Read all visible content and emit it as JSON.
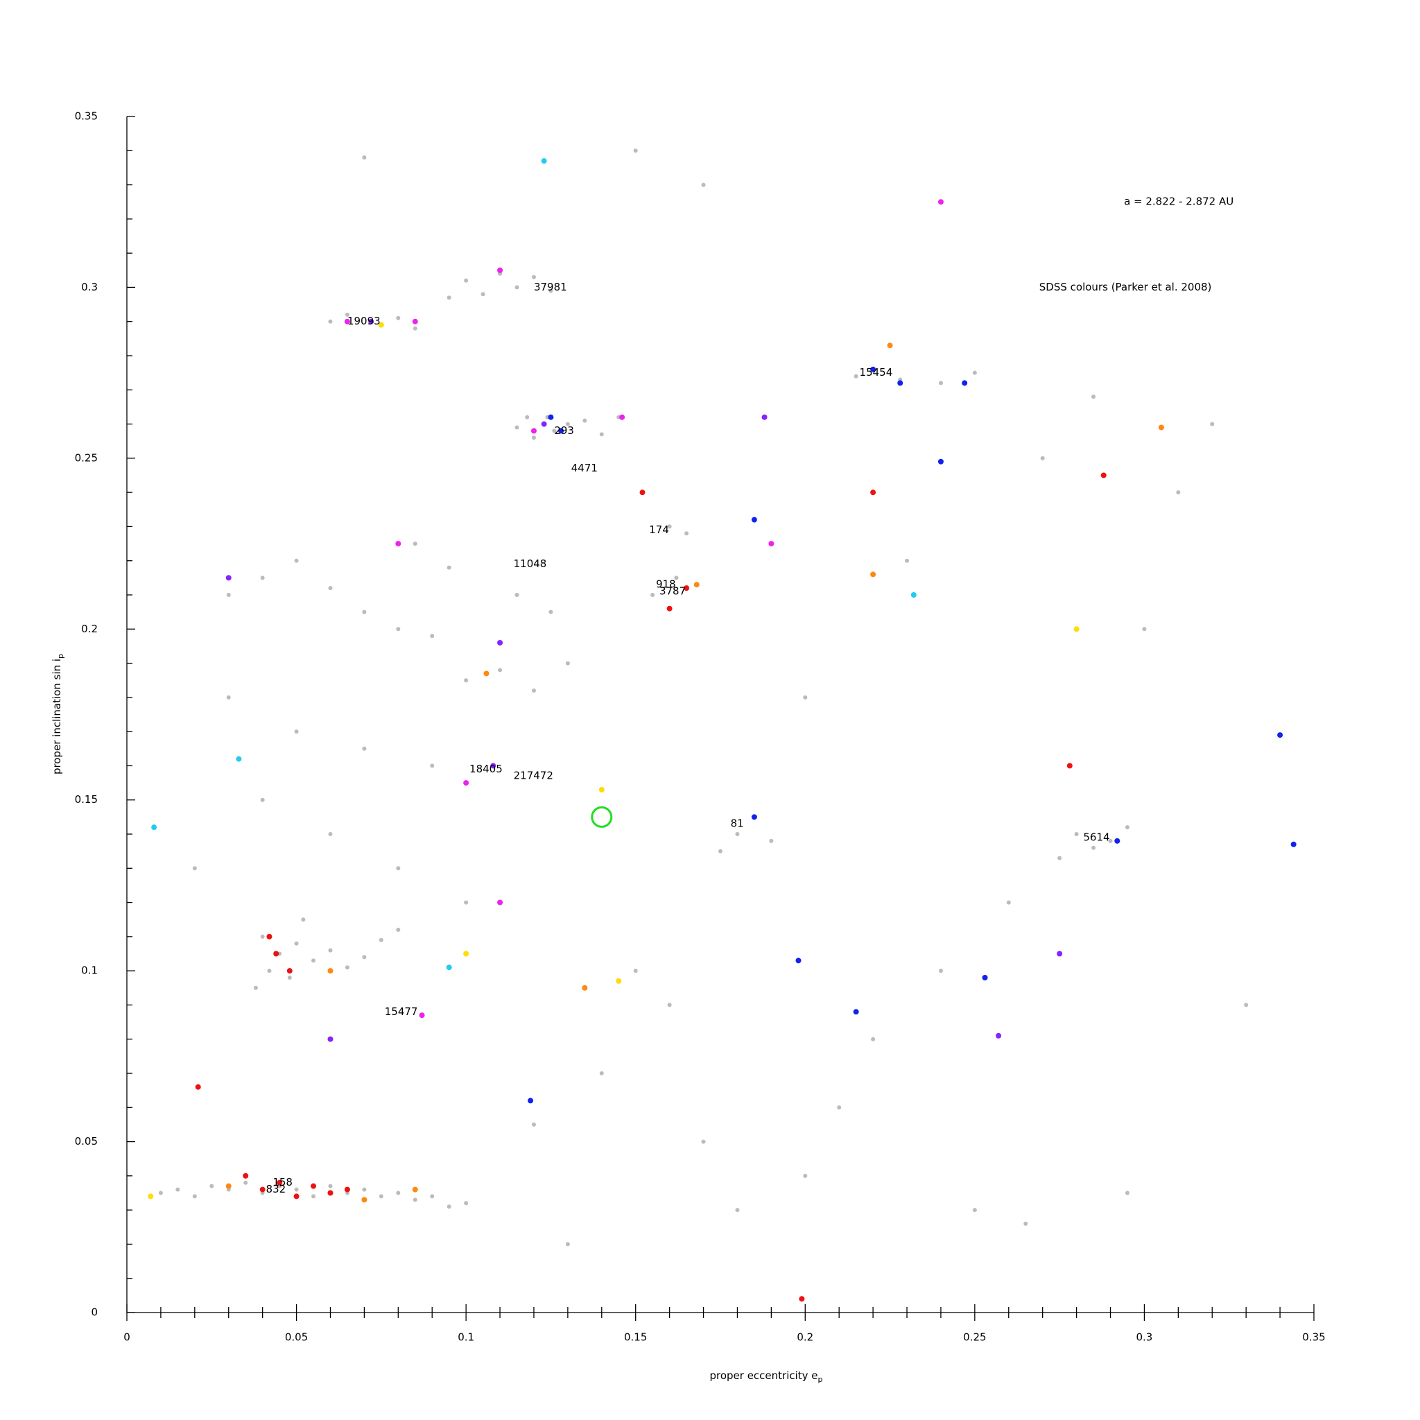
{
  "chart_data": {
    "type": "scatter",
    "xlabel": "proper eccentricity e",
    "xlabel_sub": "p",
    "ylabel": "proper inclination sin i",
    "ylabel_sub": "p",
    "xlim": [
      0,
      0.35
    ],
    "ylim": [
      0,
      0.35
    ],
    "xticks": [
      0,
      0.05,
      0.1,
      0.15,
      0.2,
      0.25,
      0.3,
      0.35
    ],
    "yticks": [
      0,
      0.05,
      0.1,
      0.15,
      0.2,
      0.25,
      0.3,
      0.35
    ],
    "minor_xticks": [
      0.01,
      0.02,
      0.03,
      0.04,
      0.06,
      0.07,
      0.08,
      0.09,
      0.11,
      0.12,
      0.13,
      0.14,
      0.16,
      0.17,
      0.18,
      0.19,
      0.21,
      0.22,
      0.23,
      0.24,
      0.26,
      0.27,
      0.28,
      0.29,
      0.31,
      0.32,
      0.33,
      0.34
    ],
    "minor_yticks": [
      0.01,
      0.02,
      0.03,
      0.04,
      0.06,
      0.07,
      0.08,
      0.09,
      0.11,
      0.12,
      0.13,
      0.14,
      0.16,
      0.17,
      0.18,
      0.19,
      0.21,
      0.22,
      0.23,
      0.24,
      0.26,
      0.27,
      0.28,
      0.29,
      0.31,
      0.32,
      0.33,
      0.34
    ],
    "annotations": [
      {
        "text": "a = 2.822 - 2.872 AU",
        "x": 0.294,
        "y": 0.325
      },
      {
        "text": "SDSS colours (Parker et al. 2008)",
        "x": 0.269,
        "y": 0.3
      }
    ],
    "family_labels": [
      {
        "text": "37981",
        "x": 0.12,
        "y": 0.3
      },
      {
        "text": "19093",
        "x": 0.065,
        "y": 0.29
      },
      {
        "text": "15454",
        "x": 0.216,
        "y": 0.275
      },
      {
        "text": "293",
        "x": 0.126,
        "y": 0.258
      },
      {
        "text": "4471",
        "x": 0.131,
        "y": 0.247
      },
      {
        "text": "174",
        "x": 0.154,
        "y": 0.229
      },
      {
        "text": "11048",
        "x": 0.114,
        "y": 0.219
      },
      {
        "text": "918",
        "x": 0.156,
        "y": 0.213
      },
      {
        "text": "3787",
        "x": 0.157,
        "y": 0.211
      },
      {
        "text": "18405",
        "x": 0.101,
        "y": 0.159
      },
      {
        "text": "217472",
        "x": 0.114,
        "y": 0.157
      },
      {
        "text": "81",
        "x": 0.178,
        "y": 0.143
      },
      {
        "text": "5614",
        "x": 0.282,
        "y": 0.139
      },
      {
        "text": "15477",
        "x": 0.076,
        "y": 0.088
      },
      {
        "text": "158",
        "x": 0.043,
        "y": 0.038
      },
      {
        "text": "832",
        "x": 0.041,
        "y": 0.036
      }
    ],
    "highlight": {
      "x": 0.14,
      "y": 0.145,
      "color": "#22dd22"
    },
    "series": [
      {
        "color": "#bbbbbb",
        "x": [
          0.01,
          0.015,
          0.02,
          0.025,
          0.03,
          0.035,
          0.04,
          0.045,
          0.05,
          0.055,
          0.06,
          0.065,
          0.07,
          0.075,
          0.08,
          0.085,
          0.09,
          0.095,
          0.1,
          0.04,
          0.042,
          0.045,
          0.048,
          0.05,
          0.055,
          0.06,
          0.065,
          0.07,
          0.075,
          0.08,
          0.038,
          0.052,
          0.118,
          0.12,
          0.124,
          0.126,
          0.13,
          0.115,
          0.135,
          0.14,
          0.145,
          0.1,
          0.105,
          0.11,
          0.115,
          0.12,
          0.125,
          0.095,
          0.06,
          0.065,
          0.075,
          0.08,
          0.085,
          0.215,
          0.22,
          0.228,
          0.25,
          0.24,
          0.03,
          0.04,
          0.05,
          0.06,
          0.07,
          0.08,
          0.09,
          0.1,
          0.11,
          0.12,
          0.13,
          0.085,
          0.095,
          0.115,
          0.125,
          0.03,
          0.05,
          0.07,
          0.09,
          0.04,
          0.06,
          0.08,
          0.1,
          0.02,
          0.16,
          0.165,
          0.155,
          0.162,
          0.18,
          0.185,
          0.175,
          0.19,
          0.28,
          0.285,
          0.29,
          0.295,
          0.275,
          0.15,
          0.16,
          0.14,
          0.17,
          0.2,
          0.18,
          0.13,
          0.12,
          0.22,
          0.24,
          0.26,
          0.3,
          0.32,
          0.2,
          0.23,
          0.17,
          0.15,
          0.07,
          0.21,
          0.25,
          0.33,
          0.295,
          0.265,
          0.27,
          0.285,
          0.31
        ],
        "values": [
          0.035,
          0.036,
          0.034,
          0.037,
          0.036,
          0.038,
          0.035,
          0.037,
          0.036,
          0.034,
          0.037,
          0.035,
          0.036,
          0.034,
          0.035,
          0.033,
          0.034,
          0.031,
          0.032,
          0.11,
          0.1,
          0.105,
          0.098,
          0.108,
          0.103,
          0.106,
          0.101,
          0.104,
          0.109,
          0.112,
          0.095,
          0.115,
          0.262,
          0.256,
          0.262,
          0.258,
          0.26,
          0.259,
          0.261,
          0.257,
          0.262,
          0.302,
          0.298,
          0.304,
          0.3,
          0.303,
          0.299,
          0.297,
          0.29,
          0.292,
          0.289,
          0.291,
          0.288,
          0.274,
          0.276,
          0.273,
          0.275,
          0.272,
          0.21,
          0.215,
          0.22,
          0.212,
          0.205,
          0.2,
          0.198,
          0.185,
          0.188,
          0.182,
          0.19,
          0.225,
          0.218,
          0.21,
          0.205,
          0.18,
          0.17,
          0.165,
          0.16,
          0.15,
          0.14,
          0.13,
          0.12,
          0.13,
          0.23,
          0.228,
          0.21,
          0.215,
          0.14,
          0.145,
          0.135,
          0.138,
          0.14,
          0.136,
          0.138,
          0.142,
          0.133,
          0.1,
          0.09,
          0.07,
          0.05,
          0.04,
          0.03,
          0.02,
          0.055,
          0.08,
          0.1,
          0.12,
          0.2,
          0.26,
          0.18,
          0.22,
          0.33,
          0.34,
          0.338,
          0.06,
          0.03,
          0.09,
          0.035,
          0.026,
          0.25,
          0.268,
          0.24
        ]
      },
      {
        "color": "#ee1111",
        "x": [
          0.04,
          0.045,
          0.05,
          0.055,
          0.06,
          0.035,
          0.065,
          0.044,
          0.042,
          0.048,
          0.16,
          0.165,
          0.22,
          0.278,
          0.021,
          0.199,
          0.288,
          0.152
        ],
        "values": [
          0.036,
          0.038,
          0.034,
          0.037,
          0.035,
          0.04,
          0.036,
          0.105,
          0.11,
          0.1,
          0.206,
          0.212,
          0.24,
          0.16,
          0.066,
          0.004,
          0.245,
          0.24
        ]
      },
      {
        "color": "#ff8811",
        "x": [
          0.03,
          0.07,
          0.085,
          0.106,
          0.22,
          0.225,
          0.305,
          0.168,
          0.06,
          0.135
        ],
        "values": [
          0.037,
          0.033,
          0.036,
          0.187,
          0.216,
          0.283,
          0.259,
          0.213,
          0.1,
          0.095
        ]
      },
      {
        "color": "#ffdd00",
        "x": [
          0.007,
          0.075,
          0.1,
          0.145,
          0.28,
          0.14
        ],
        "values": [
          0.034,
          0.289,
          0.105,
          0.097,
          0.2,
          0.153
        ]
      },
      {
        "color": "#ee22ee",
        "x": [
          0.065,
          0.085,
          0.12,
          0.146,
          0.11,
          0.087,
          0.08,
          0.1,
          0.24,
          0.19,
          0.11
        ],
        "values": [
          0.29,
          0.29,
          0.258,
          0.262,
          0.305,
          0.087,
          0.225,
          0.155,
          0.325,
          0.225,
          0.12
        ]
      },
      {
        "color": "#8822ff",
        "x": [
          0.072,
          0.123,
          0.188,
          0.11,
          0.108,
          0.257,
          0.275,
          0.06,
          0.03
        ],
        "values": [
          0.29,
          0.26,
          0.262,
          0.196,
          0.16,
          0.081,
          0.105,
          0.08,
          0.215
        ]
      },
      {
        "color": "#1122ee",
        "x": [
          0.125,
          0.128,
          0.22,
          0.247,
          0.185,
          0.119,
          0.215,
          0.228,
          0.24,
          0.185,
          0.292,
          0.344,
          0.34,
          0.253,
          0.198
        ],
        "values": [
          0.262,
          0.258,
          0.276,
          0.272,
          0.232,
          0.062,
          0.088,
          0.272,
          0.249,
          0.145,
          0.138,
          0.137,
          0.169,
          0.098,
          0.103
        ]
      },
      {
        "color": "#22ccee",
        "x": [
          0.123,
          0.033,
          0.095,
          0.232,
          0.008
        ],
        "values": [
          0.337,
          0.162,
          0.101,
          0.21,
          0.142
        ]
      }
    ]
  }
}
